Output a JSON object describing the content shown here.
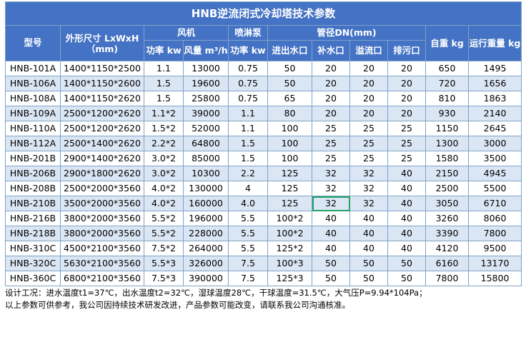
{
  "title": "HNB逆流闭式冷却塔技术参数",
  "headers": {
    "model": "型号",
    "dims": "外形尺寸 LxWxH（mm)",
    "fan": "风机",
    "pump": "喷淋泵",
    "pipe": "管径DN(mm)",
    "weight": "自重 kg",
    "run_weight": "运行重量 kg",
    "fan_power": "功率 kw",
    "fan_air": "风量 m³/h",
    "pump_power": "功率 kw",
    "inout": "进出水口",
    "makeup": "补水口",
    "overflow": "溢流口",
    "drain": "排污口"
  },
  "rows": [
    [
      "HNB-101A",
      "1400*1150*2500",
      "1.1",
      "13000",
      "0.75",
      "50",
      "20",
      "20",
      "20",
      "650",
      "1495"
    ],
    [
      "HNB-106A",
      "1400*1150*2600",
      "1.5",
      "19600",
      "0.75",
      "50",
      "20",
      "20",
      "20",
      "720",
      "1656"
    ],
    [
      "HNB-108A",
      "1400*1150*2620",
      "1.5",
      "25800",
      "0.75",
      "65",
      "20",
      "20",
      "20",
      "810",
      "1863"
    ],
    [
      "HNB-109A",
      "2500*1200*2620",
      "1.1*2",
      "39000",
      "1.1",
      "80",
      "20",
      "20",
      "20",
      "930",
      "2140"
    ],
    [
      "HNB-110A",
      "2500*1200*2620",
      "1.5*2",
      "52000",
      "1.1",
      "100",
      "25",
      "25",
      "25",
      "1150",
      "2645"
    ],
    [
      "HNB-112A",
      "2500*1400*2620",
      "2.2*2",
      "64800",
      "1.5",
      "100",
      "25",
      "25",
      "25",
      "1300",
      "3000"
    ],
    [
      "HNB-201B",
      "2900*1400*2620",
      "3.0*2",
      "85000",
      "1.5",
      "100",
      "25",
      "25",
      "25",
      "1580",
      "3500"
    ],
    [
      "HNB-206B",
      "2900*1800*2620",
      "3.0*2",
      "10300",
      "2.2",
      "125",
      "32",
      "32",
      "40",
      "2150",
      "4945"
    ],
    [
      "HNB-208B",
      "2500*2000*3560",
      "4.0*2",
      "130000",
      "4",
      "125",
      "32",
      "32",
      "40",
      "2500",
      "5500"
    ],
    [
      "HNB-210B",
      "3500*2000*3560",
      "4.0*2",
      "160000",
      "4.0",
      "125",
      "32",
      "32",
      "40",
      "3050",
      "6710"
    ],
    [
      "HNB-216B",
      "3800*2000*3560",
      "5.5*2",
      "196000",
      "5.5",
      "100*2",
      "40",
      "40",
      "40",
      "3260",
      "8060"
    ],
    [
      "HNB-218B",
      "3800*2000*3560",
      "5.5*2",
      "228000",
      "5.5",
      "100*2",
      "40",
      "40",
      "40",
      "3390",
      "7800"
    ],
    [
      "HNB-310C",
      "4500*2100*3560",
      "7.5*2",
      "264000",
      "5.5",
      "125*2",
      "40",
      "40",
      "40",
      "4120",
      "9500"
    ],
    [
      "HNB-320C",
      "5630*2100*3560",
      "5.5*3",
      "326000",
      "7.5",
      "100*3",
      "50",
      "50",
      "50",
      "6160",
      "13170"
    ],
    [
      "HNB-360C",
      "6800*2100*3560",
      "7.5*3",
      "390000",
      "7.5",
      "125*3",
      "50",
      "50",
      "50",
      "7800",
      "15800"
    ]
  ],
  "notes": [
    "设计工况：进水温度t1=37℃，出水温度t2=32℃，湿球温度28℃，干球温度=31.5℃，大气压P=9.94*104Pa；",
    "以上参数可供参考，我公司因持续技术研发改进，产品参数可能改变，请联系我公司沟通核准。"
  ],
  "selected_cell": {
    "row": 9,
    "col": 6
  },
  "colors": {
    "header_bg": "#4472c4",
    "header_text": "#ffffff",
    "band": "#dbe6f4",
    "border": "#7fa3c8",
    "selection": "#21a366"
  }
}
